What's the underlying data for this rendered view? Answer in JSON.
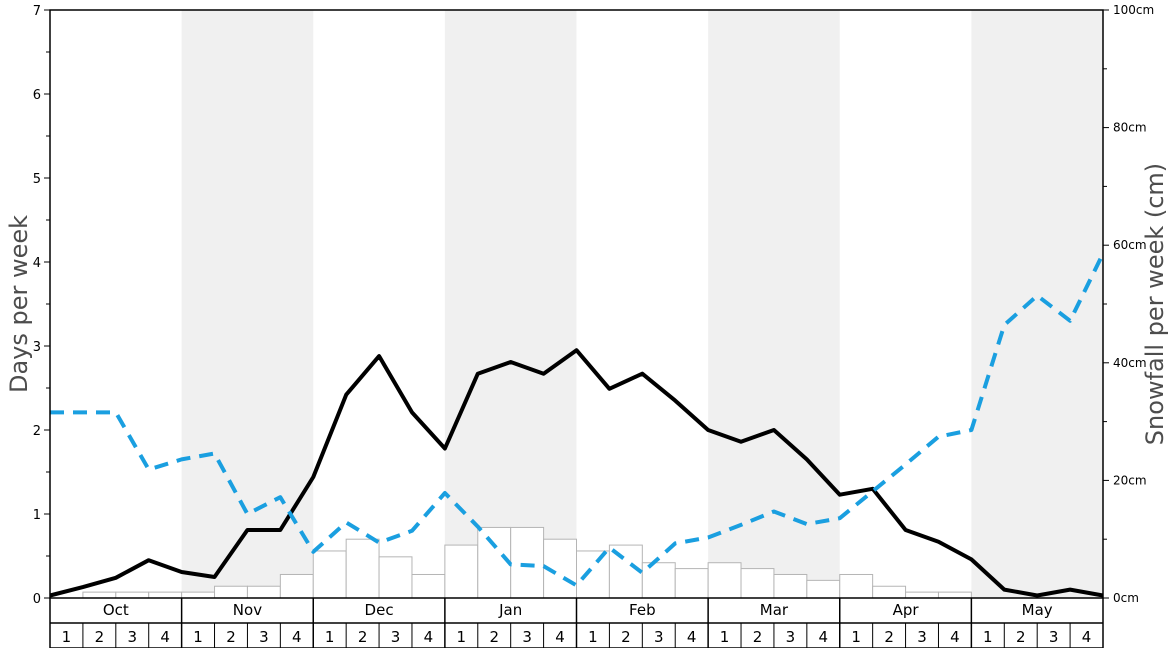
{
  "chart_data": {
    "type": "bar",
    "months": [
      "Oct",
      "Nov",
      "Dec",
      "Jan",
      "Feb",
      "Mar",
      "Apr",
      "May"
    ],
    "week_labels": [
      "1",
      "2",
      "3",
      "4"
    ],
    "ylabel_left": "Days per week",
    "ylabel_right": "Snowfall per week (cm)",
    "ylim_left": [
      0,
      7
    ],
    "ylim_right": [
      0,
      100
    ],
    "left_ticks": [
      "0",
      "1",
      "2",
      "3",
      "4",
      "5",
      "6",
      "7"
    ],
    "right_ticks": [
      "0cm",
      "20cm",
      "40cm",
      "60cm",
      "80cm",
      "100cm"
    ],
    "shaded_months": [
      "Nov",
      "Jan",
      "Mar",
      "May"
    ],
    "series": [
      {
        "kind": "bar",
        "axis": "right",
        "unit": "cm",
        "values": [
          0,
          1,
          1,
          1,
          1,
          2,
          2,
          4,
          8,
          10,
          7,
          4,
          9,
          12,
          12,
          10,
          8,
          9,
          6,
          5,
          6,
          5,
          4,
          3,
          4,
          2,
          1,
          1,
          0,
          0,
          0,
          0
        ]
      },
      {
        "kind": "line",
        "axis": "left",
        "style": "solid",
        "color": "#000000",
        "points": [
          0.03,
          0.13,
          0.24,
          0.45,
          0.31,
          0.25,
          0.81,
          0.81,
          1.44,
          2.42,
          2.88,
          2.21,
          1.78,
          2.67,
          2.81,
          2.67,
          2.95,
          2.49,
          2.67,
          2.35,
          2.0,
          1.86,
          2.0,
          1.65,
          1.23,
          1.3,
          0.81,
          0.67,
          0.46,
          0.1,
          0.03,
          0.1,
          0.03
        ]
      },
      {
        "kind": "line",
        "axis": "left",
        "style": "dashed",
        "color": "#1a9fe0",
        "points": [
          2.21,
          2.21,
          2.21,
          1.53,
          1.65,
          1.72,
          1.0,
          1.2,
          0.55,
          0.9,
          0.66,
          0.8,
          1.25,
          0.85,
          0.4,
          0.38,
          0.15,
          0.6,
          0.3,
          0.65,
          0.72,
          0.87,
          1.03,
          0.88,
          0.95,
          1.27,
          1.59,
          1.92,
          2.0,
          3.25,
          3.6,
          3.3,
          4.1
        ]
      }
    ]
  }
}
